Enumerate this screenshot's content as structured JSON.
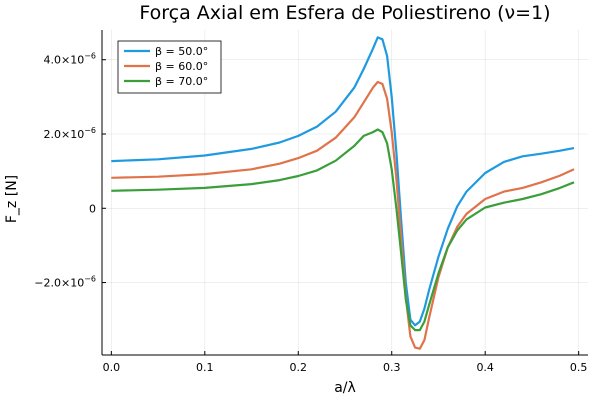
{
  "chart_data": {
    "type": "line",
    "title": "Força Axial em Esfera de Poliestireno (ν=1)",
    "xlabel": "a/λ",
    "ylabel": "F_z [N]",
    "xlim": [
      -0.01,
      0.51
    ],
    "ylim": [
      -3.95e-06,
      4.8e-06
    ],
    "grid": true,
    "legend_position": "top-left",
    "x_ticks": [
      {
        "value": 0.0,
        "label": "0.0"
      },
      {
        "value": 0.1,
        "label": "0.1"
      },
      {
        "value": 0.2,
        "label": "0.2"
      },
      {
        "value": 0.3,
        "label": "0.3"
      },
      {
        "value": 0.4,
        "label": "0.4"
      },
      {
        "value": 0.5,
        "label": "0.5"
      }
    ],
    "y_ticks": [
      {
        "value": 4e-06,
        "mantissa": "4.0×10",
        "exp": "−6"
      },
      {
        "value": 2e-06,
        "mantissa": "2.0×10",
        "exp": "−6"
      },
      {
        "value": 0,
        "mantissa": "0",
        "exp": ""
      },
      {
        "value": -2e-06,
        "mantissa": "−2.0×10",
        "exp": "−6"
      }
    ],
    "x": [
      0,
      0.05,
      0.1,
      0.15,
      0.18,
      0.2,
      0.22,
      0.24,
      0.26,
      0.27,
      0.28,
      0.285,
      0.29,
      0.295,
      0.3,
      0.305,
      0.31,
      0.315,
      0.32,
      0.325,
      0.33,
      0.335,
      0.34,
      0.35,
      0.36,
      0.37,
      0.38,
      0.4,
      0.42,
      0.44,
      0.46,
      0.48,
      0.495
    ],
    "series": [
      {
        "name": "β = 50.0°",
        "color": "#1f9ae0",
        "values": [
          1.27e-06,
          1.32e-06,
          1.42e-06,
          1.6e-06,
          1.77e-06,
          1.95e-06,
          2.2e-06,
          2.6e-06,
          3.25e-06,
          3.75e-06,
          4.3e-06,
          4.6e-06,
          4.55e-06,
          4.1e-06,
          3e-06,
          1.5e-06,
          -3e-07,
          -2e-06,
          -3e-06,
          -3.15e-06,
          -3.05e-06,
          -2.7e-06,
          -2.2e-06,
          -1.3e-06,
          -5.5e-07,
          5e-08,
          4.5e-07,
          9.5e-07,
          1.25e-06,
          1.4e-06,
          1.47e-06,
          1.55e-06,
          1.62e-06
        ]
      },
      {
        "name": "β = 60.0°",
        "color": "#e0734a",
        "values": [
          8.2e-07,
          8.5e-07,
          9.2e-07,
          1.05e-06,
          1.2e-06,
          1.35e-06,
          1.55e-06,
          1.9e-06,
          2.45e-06,
          2.85e-06,
          3.25e-06,
          3.4e-06,
          3.35e-06,
          2.95e-06,
          2.05e-06,
          8e-07,
          -8e-07,
          -2.4e-06,
          -3.45e-06,
          -3.75e-06,
          -3.78e-06,
          -3.55e-06,
          -2.95e-06,
          -1.85e-06,
          -1.05e-06,
          -5e-07,
          -1.5e-07,
          2.5e-07,
          4.5e-07,
          5.5e-07,
          7e-07,
          8.8e-07,
          1.05e-06
        ]
      },
      {
        "name": "β = 70.0°",
        "color": "#3a9e3a",
        "values": [
          4.7e-07,
          5e-07,
          5.5e-07,
          6.5e-07,
          7.6e-07,
          8.7e-07,
          1.02e-06,
          1.28e-06,
          1.68e-06,
          1.95e-06,
          2.05e-06,
          2.12e-06,
          2.05e-06,
          1.75e-06,
          1.05e-06,
          0.0,
          -1.2e-06,
          -2.45e-06,
          -3.15e-06,
          -3.28e-06,
          -3.28e-06,
          -3.05e-06,
          -2.6e-06,
          -1.75e-06,
          -1.05e-06,
          -6e-07,
          -3e-07,
          2e-08,
          1.5e-07,
          2.5e-07,
          3.8e-07,
          5.5e-07,
          7e-07
        ]
      }
    ]
  }
}
